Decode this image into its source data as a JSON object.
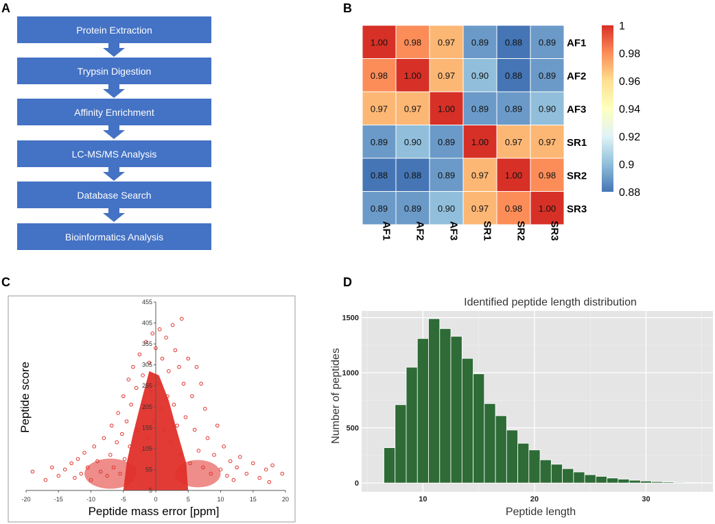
{
  "panel_labels": {
    "a": "A",
    "b": "B",
    "c": "C",
    "d": "D"
  },
  "flowchart": {
    "steps": [
      "Protein Extraction",
      "Trypsin Digestion",
      "Affinity Enrichment",
      "LC-MS/MS Analysis",
      "Database Search",
      "Bioinformatics Analysis"
    ],
    "box_color": "#4472c4"
  },
  "chart_data": [
    {
      "id": "B",
      "type": "heatmap",
      "title": "",
      "rows": [
        "AF1",
        "AF2",
        "AF3",
        "SR1",
        "SR2",
        "SR3"
      ],
      "columns": [
        "AF1",
        "AF2",
        "AF3",
        "SR1",
        "SR2",
        "SR3"
      ],
      "values": [
        [
          1.0,
          0.98,
          0.97,
          0.89,
          0.88,
          0.89
        ],
        [
          0.98,
          1.0,
          0.97,
          0.9,
          0.88,
          0.89
        ],
        [
          0.97,
          0.97,
          1.0,
          0.89,
          0.89,
          0.9
        ],
        [
          0.89,
          0.9,
          0.89,
          1.0,
          0.97,
          0.97
        ],
        [
          0.88,
          0.88,
          0.89,
          0.97,
          1.0,
          0.98
        ],
        [
          0.89,
          0.89,
          0.9,
          0.97,
          0.98,
          1.0
        ]
      ],
      "value_labels": [
        [
          "1.00",
          "0.98",
          "0.97",
          "0.89",
          "0.88",
          "0.89"
        ],
        [
          "0.98",
          "1.00",
          "0.97",
          "0.90",
          "0.88",
          "0.89"
        ],
        [
          "0.97",
          "0.97",
          "1.00",
          "0.89",
          "0.89",
          "0.90"
        ],
        [
          "0.89",
          "0.90",
          "0.89",
          "1.00",
          "0.97",
          "0.97"
        ],
        [
          "0.88",
          "0.88",
          "0.89",
          "0.97",
          "1.00",
          "0.98"
        ],
        [
          "0.89",
          "0.89",
          "0.90",
          "0.97",
          "0.98",
          "1.00"
        ]
      ],
      "colorbar": {
        "range": [
          0.88,
          1.0
        ],
        "ticks": [
          1.0,
          0.98,
          0.96,
          0.94,
          0.92,
          0.9,
          0.88
        ],
        "tick_labels": [
          "1",
          "0.98",
          "0.96",
          "0.94",
          "0.92",
          "0.9",
          "0.88"
        ],
        "colors": [
          "#4575b4",
          "#91bfdb",
          "#e0f3f8",
          "#ffffbf",
          "#fee090",
          "#fc8d59",
          "#d73027"
        ]
      }
    },
    {
      "id": "C",
      "type": "scatter",
      "title": "",
      "xlabel": "Peptide mass error [ppm]",
      "ylabel": "Peptide score",
      "xlim": [
        -20,
        20
      ],
      "ylim": [
        5,
        455
      ],
      "xticks": [
        -20,
        -15,
        -10,
        -5,
        0,
        5,
        10,
        15,
        20
      ],
      "xtick_labels": [
        "-20",
        "-15",
        "-10",
        "-5",
        "0",
        "5",
        "10",
        "15",
        "20"
      ],
      "yticks": [
        5,
        55,
        105,
        155,
        205,
        255,
        305,
        355,
        405,
        455
      ],
      "ytick_labels": [
        "5",
        "55",
        "105",
        "155",
        "205",
        "255",
        "305",
        "355",
        "405",
        "455"
      ],
      "marker_color": "#e0302a",
      "points": [
        [
          -19,
          50
        ],
        [
          -17,
          30
        ],
        [
          -16,
          60
        ],
        [
          -15,
          40
        ],
        [
          -14,
          55
        ],
        [
          -13,
          70
        ],
        [
          -12.5,
          35
        ],
        [
          -12,
          80
        ],
        [
          -11.5,
          45
        ],
        [
          -11,
          95
        ],
        [
          -10.5,
          60
        ],
        [
          -10,
          30
        ],
        [
          -9.5,
          110
        ],
        [
          -9,
          75
        ],
        [
          -8.5,
          50
        ],
        [
          -8,
          130
        ],
        [
          -7.5,
          40
        ],
        [
          -7,
          90
        ],
        [
          -6.8,
          160
        ],
        [
          -6.5,
          60
        ],
        [
          -6,
          120
        ],
        [
          -5.8,
          190
        ],
        [
          -5.5,
          45
        ],
        [
          -5.2,
          140
        ],
        [
          -5,
          230
        ],
        [
          -4.8,
          80
        ],
        [
          -4.5,
          170
        ],
        [
          -4.2,
          270
        ],
        [
          -4,
          110
        ],
        [
          -3.8,
          210
        ],
        [
          -3.5,
          300
        ],
        [
          -3.3,
          60
        ],
        [
          -3,
          250
        ],
        [
          -2.8,
          150
        ],
        [
          -2.5,
          330
        ],
        [
          -2.3,
          100
        ],
        [
          -2,
          280
        ],
        [
          -1.8,
          200
        ],
        [
          -1.5,
          360
        ],
        [
          -1.3,
          130
        ],
        [
          -1,
          310
        ],
        [
          -0.8,
          240
        ],
        [
          -0.5,
          380
        ],
        [
          -0.3,
          170
        ],
        [
          0,
          345
        ],
        [
          0.3,
          260
        ],
        [
          0.6,
          390
        ],
        [
          0.8,
          200
        ],
        [
          1,
          320
        ],
        [
          1.3,
          150
        ],
        [
          1.6,
          370
        ],
        [
          1.8,
          230
        ],
        [
          2,
          290
        ],
        [
          2.3,
          120
        ],
        [
          2.6,
          400
        ],
        [
          2.8,
          210
        ],
        [
          3,
          340
        ],
        [
          3.3,
          160
        ],
        [
          3.6,
          300
        ],
        [
          3.8,
          90
        ],
        [
          4,
          415
        ],
        [
          4.3,
          260
        ],
        [
          4.6,
          180
        ],
        [
          5,
          320
        ],
        [
          5.3,
          70
        ],
        [
          5.6,
          230
        ],
        [
          6,
          150
        ],
        [
          6.3,
          300
        ],
        [
          6.6,
          100
        ],
        [
          7,
          260
        ],
        [
          7.3,
          60
        ],
        [
          7.6,
          200
        ],
        [
          8,
          130
        ],
        [
          8.5,
          45
        ],
        [
          9,
          90
        ],
        [
          9.5,
          160
        ],
        [
          10,
          55
        ],
        [
          10.5,
          110
        ],
        [
          11,
          40
        ],
        [
          11.5,
          75
        ],
        [
          12,
          30
        ],
        [
          12.5,
          60
        ],
        [
          13,
          85
        ],
        [
          14,
          45
        ],
        [
          15,
          70
        ],
        [
          16,
          35
        ],
        [
          17,
          55
        ],
        [
          17.5,
          25
        ],
        [
          18,
          65
        ],
        [
          19.5,
          45
        ]
      ],
      "core_shape": {
        "description": "dense red cloud centered at 0 ppm",
        "core_bounds_ppm": [
          -5,
          5
        ],
        "core_score_range": [
          5,
          290
        ]
      }
    },
    {
      "id": "D",
      "type": "bar",
      "title": "Identified peptide length distribution",
      "xlabel": "Peptide length",
      "ylabel": "Number of peptides",
      "xlim": [
        4.5,
        36
      ],
      "ylim": [
        -80,
        1560
      ],
      "xticks": [
        10,
        20,
        30
      ],
      "xtick_labels": [
        "10",
        "20",
        "30"
      ],
      "yticks": [
        0,
        500,
        1000,
        1500
      ],
      "ytick_labels": [
        "0",
        "500",
        "1000",
        "1500"
      ],
      "bar_color": "#2e6b36",
      "background_color": "#e5e5e5",
      "categories": [
        7,
        8,
        9,
        10,
        11,
        12,
        13,
        14,
        15,
        16,
        17,
        18,
        19,
        20,
        21,
        22,
        23,
        24,
        25,
        26,
        27,
        28,
        29,
        30,
        31,
        32,
        33,
        34,
        35
      ],
      "values": [
        320,
        710,
        1050,
        1310,
        1490,
        1400,
        1330,
        1130,
        990,
        720,
        610,
        480,
        360,
        300,
        210,
        170,
        130,
        100,
        75,
        60,
        45,
        35,
        25,
        18,
        12,
        9,
        6,
        4,
        3
      ]
    }
  ]
}
